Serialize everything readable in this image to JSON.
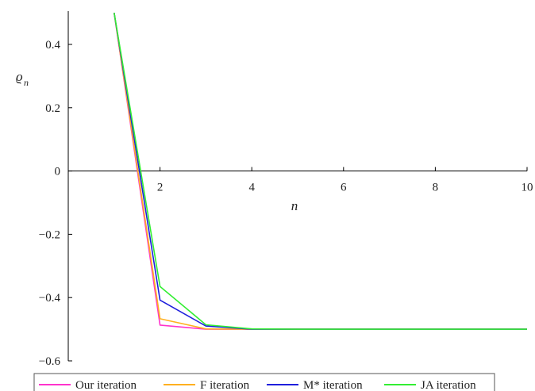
{
  "chart_data": {
    "type": "line",
    "xlabel": "n",
    "ylabel": "ϱ",
    "ylabel_sub": "n",
    "xlim": [
      0,
      10
    ],
    "ylim": [
      -0.6,
      0.5
    ],
    "x_ticks": [
      2,
      4,
      6,
      8,
      10
    ],
    "y_ticks": [
      0.4,
      0.2,
      0,
      -0.2,
      -0.4,
      -0.6
    ],
    "x_tick_labels": [
      "2",
      "4",
      "6",
      "8",
      "10"
    ],
    "y_tick_labels": [
      "0.4",
      "0.2",
      "0",
      "−0.2",
      "−0.4",
      "−0.6"
    ],
    "grid": false,
    "legend_position": "bottom",
    "x": [
      1,
      2,
      3,
      4,
      5,
      6,
      7,
      8,
      9,
      10
    ],
    "series": [
      {
        "name": "Our iteration",
        "color": "#ff33cc",
        "values": [
          0.5,
          -0.487,
          -0.5,
          -0.5,
          -0.5,
          -0.5,
          -0.5,
          -0.5,
          -0.5,
          -0.5
        ]
      },
      {
        "name": "F iteration",
        "color": "#ffb020",
        "values": [
          0.5,
          -0.467,
          -0.499,
          -0.5,
          -0.5,
          -0.5,
          -0.5,
          -0.5,
          -0.5,
          -0.5
        ]
      },
      {
        "name": "M* iteration",
        "color": "#1f1fdd",
        "values": [
          0.5,
          -0.408,
          -0.49,
          -0.5,
          -0.5,
          -0.5,
          -0.5,
          -0.5,
          -0.5,
          -0.5
        ]
      },
      {
        "name": "JA iteration",
        "color": "#33ee33",
        "values": [
          0.5,
          -0.365,
          -0.486,
          -0.499,
          -0.5,
          -0.5,
          -0.5,
          -0.5,
          -0.5,
          -0.5
        ]
      }
    ]
  }
}
